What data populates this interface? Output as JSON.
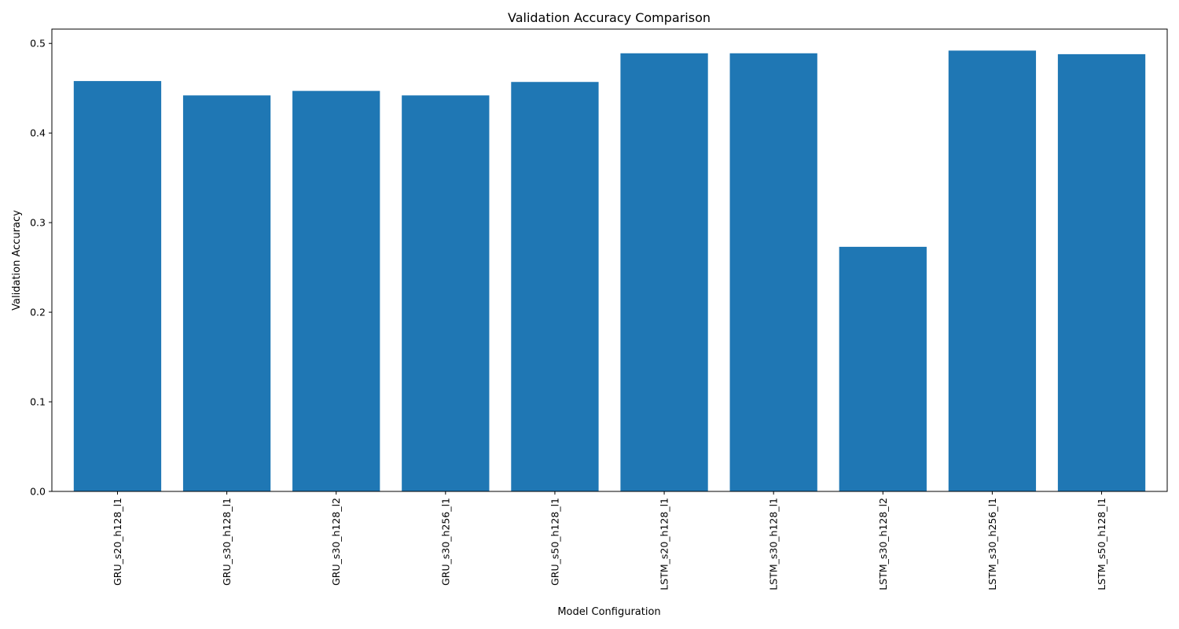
{
  "chart_data": {
    "type": "bar",
    "title": "Validation Accuracy Comparison",
    "xlabel": "Model Configuration",
    "ylabel": "Validation Accuracy",
    "categories": [
      "GRU_s20_h128_l1",
      "GRU_s30_h128_l1",
      "GRU_s30_h128_l2",
      "GRU_s30_h256_l1",
      "GRU_s50_h128_l1",
      "LSTM_s20_h128_l1",
      "LSTM_s30_h128_l1",
      "LSTM_s30_h128_l2",
      "LSTM_s30_h256_l1",
      "LSTM_s50_h128_l1"
    ],
    "values": [
      0.458,
      0.442,
      0.447,
      0.442,
      0.457,
      0.489,
      0.489,
      0.273,
      0.492,
      0.488
    ],
    "ylim": [
      0,
      0.516
    ],
    "yticks": [
      0.0,
      0.1,
      0.2,
      0.3,
      0.4,
      0.5
    ],
    "ytick_labels": [
      "0.0",
      "0.1",
      "0.2",
      "0.3",
      "0.4",
      "0.5"
    ],
    "grid": false,
    "bar_color": "#1f77b4"
  }
}
